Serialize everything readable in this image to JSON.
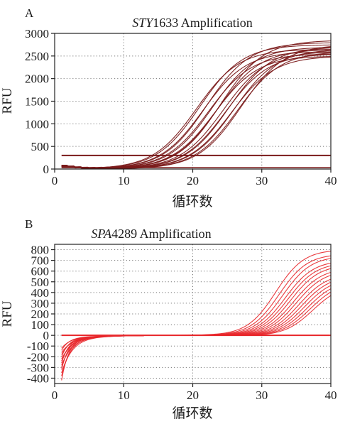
{
  "chart_data": [
    {
      "panel_label": "A",
      "type": "line",
      "title_gene": "STY",
      "title_rest": "1633 Amplification",
      "title": "STY1633 Amplification",
      "xlabel": "循环数",
      "ylabel": "RFU",
      "xlim": [
        0,
        40
      ],
      "ylim": [
        0,
        3000
      ],
      "xticks": [
        "0",
        "10",
        "20",
        "30",
        "40"
      ],
      "yticks": [
        "0",
        "500",
        "1000",
        "1500",
        "2000",
        "2500",
        "3000"
      ],
      "grid": "dotted",
      "color": "#7a1a1a",
      "threshold": 300,
      "baseline": 0,
      "series_shape": "sigmoid",
      "x_start": 1,
      "x_end": 40,
      "curves": [
        {
          "ct": 20.5,
          "max": 2650
        },
        {
          "ct": 21.0,
          "max": 2750
        },
        {
          "ct": 21.5,
          "max": 2600
        },
        {
          "ct": 22.0,
          "max": 2800
        },
        {
          "ct": 22.3,
          "max": 2550
        },
        {
          "ct": 22.8,
          "max": 2700
        },
        {
          "ct": 23.2,
          "max": 2500
        },
        {
          "ct": 23.6,
          "max": 2650
        },
        {
          "ct": 24.0,
          "max": 2850
        },
        {
          "ct": 24.4,
          "max": 2600
        },
        {
          "ct": 24.8,
          "max": 2550
        },
        {
          "ct": 25.2,
          "max": 2700
        },
        {
          "ct": 25.6,
          "max": 2500
        },
        {
          "ct": 26.0,
          "max": 2650
        },
        {
          "ct": 26.5,
          "max": 2600
        },
        {
          "ct": 27.0,
          "max": 2750
        }
      ],
      "early_bump": {
        "x": [
          1,
          2,
          3,
          4,
          5,
          6,
          7
        ],
        "y": [
          80,
          60,
          40,
          25,
          15,
          8,
          3
        ]
      }
    },
    {
      "panel_label": "B",
      "type": "line",
      "title_gene": "SPA",
      "title_rest": "4289 Amplification",
      "title": "SPA4289 Amplification",
      "xlabel": "循环数",
      "ylabel": "RFU",
      "xlim": [
        0,
        40
      ],
      "ylim": [
        -450,
        850
      ],
      "xticks": [
        "0",
        "10",
        "20",
        "30",
        "40"
      ],
      "yticks": [
        "-400",
        "-300",
        "-200",
        "-100",
        "0",
        "100",
        "200",
        "300",
        "400",
        "500",
        "600",
        "700",
        "800"
      ],
      "ytick_values": [
        -400,
        -300,
        -200,
        -100,
        0,
        100,
        200,
        300,
        400,
        500,
        600,
        700,
        800
      ],
      "grid": "dotted",
      "color": "#e8262a",
      "threshold": 0,
      "curves": [
        {
          "start": -420,
          "ct": 32.0,
          "max": 820
        },
        {
          "start": -380,
          "ct": 32.5,
          "max": 780
        },
        {
          "start": -350,
          "ct": 33.0,
          "max": 760
        },
        {
          "start": -320,
          "ct": 33.4,
          "max": 720
        },
        {
          "start": -300,
          "ct": 33.8,
          "max": 700
        },
        {
          "start": -280,
          "ct": 34.2,
          "max": 680
        },
        {
          "start": -260,
          "ct": 34.6,
          "max": 650
        },
        {
          "start": -240,
          "ct": 35.0,
          "max": 630
        },
        {
          "start": -220,
          "ct": 35.4,
          "max": 600
        },
        {
          "start": -200,
          "ct": 35.8,
          "max": 580
        },
        {
          "start": -180,
          "ct": 36.2,
          "max": 560
        },
        {
          "start": -160,
          "ct": 36.6,
          "max": 540
        },
        {
          "start": -140,
          "ct": 37.0,
          "max": 520
        },
        {
          "start": -120,
          "ct": 37.4,
          "max": 500
        }
      ]
    }
  ]
}
